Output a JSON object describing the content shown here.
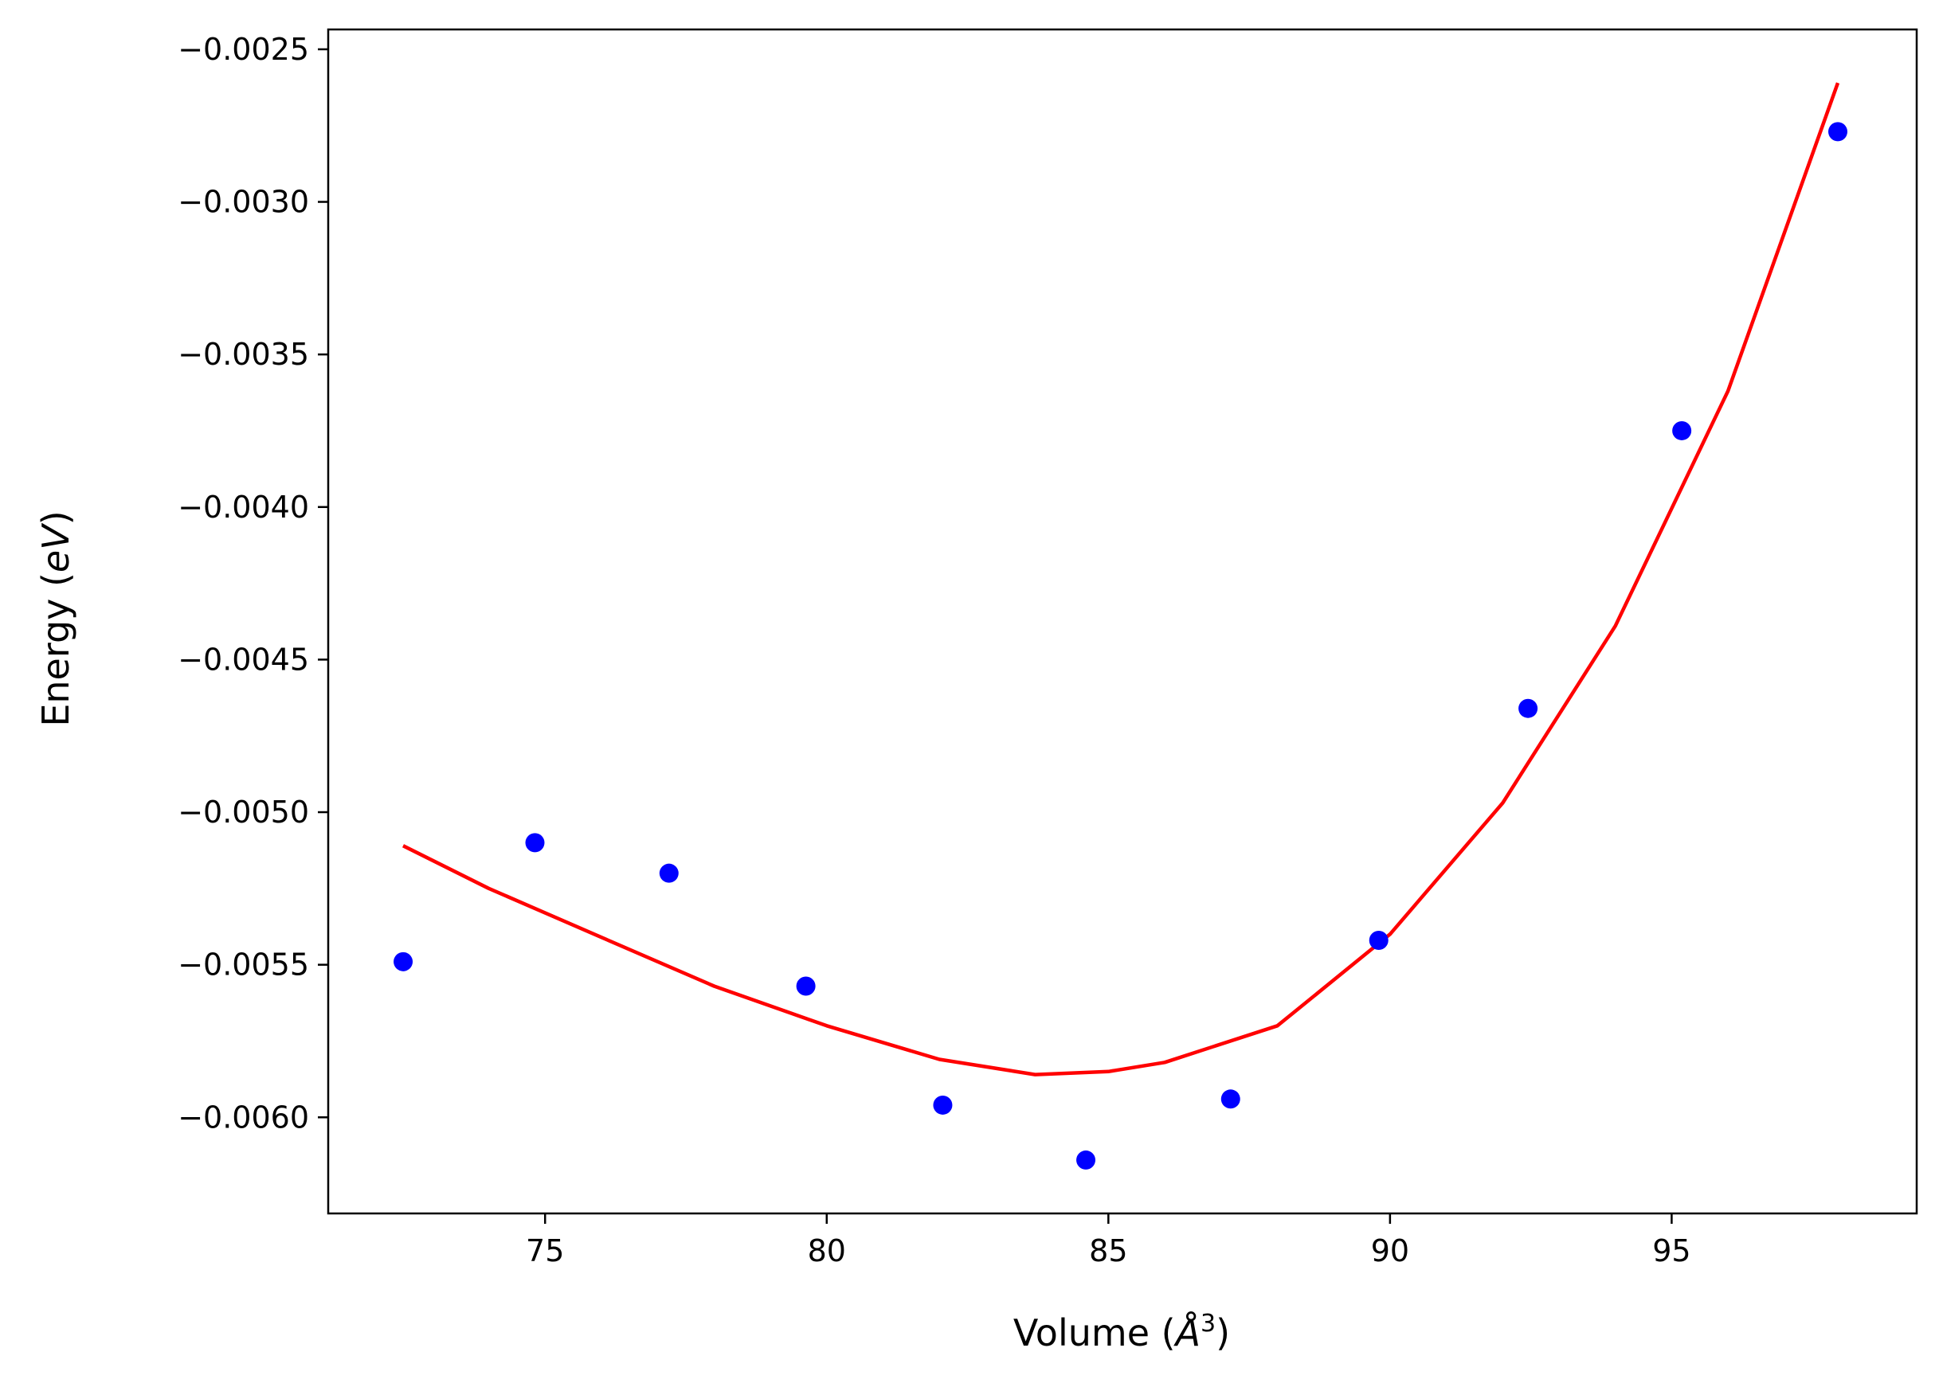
{
  "chart_data": {
    "type": "scatter",
    "title": "",
    "xlabel": "Volume (",
    "xlabel_symbol": "Å",
    "xlabel_exponent": "3",
    "xlabel_close": ")",
    "ylabel": "Energy (",
    "ylabel_unit": "eV",
    "ylabel_close": ")",
    "xlim": [
      71.15,
      99.35
    ],
    "ylim": [
      -0.006315,
      -0.002435
    ],
    "xticks": [
      {
        "value": 75,
        "label": "75"
      },
      {
        "value": 80,
        "label": "80"
      },
      {
        "value": 85,
        "label": "85"
      },
      {
        "value": 90,
        "label": "90"
      },
      {
        "value": 95,
        "label": "95"
      }
    ],
    "yticks": [
      {
        "value": -0.0025,
        "label": "−0.0025"
      },
      {
        "value": -0.003,
        "label": "−0.0030"
      },
      {
        "value": -0.0035,
        "label": "−0.0035"
      },
      {
        "value": -0.004,
        "label": "−0.0040"
      },
      {
        "value": -0.0045,
        "label": "−0.0045"
      },
      {
        "value": -0.005,
        "label": "−0.0050"
      },
      {
        "value": -0.0055,
        "label": "−0.0055"
      },
      {
        "value": -0.006,
        "label": "−0.0060"
      }
    ],
    "grid": false,
    "series": [
      {
        "name": "data",
        "kind": "scatter",
        "color": "#0000ff",
        "x": [
          72.48,
          74.82,
          77.2,
          79.63,
          82.06,
          84.6,
          87.17,
          89.8,
          92.45,
          95.18,
          97.95
        ],
        "y": [
          -0.00549,
          -0.0051,
          -0.0052,
          -0.00557,
          -0.00596,
          -0.00614,
          -0.00594,
          -0.00542,
          -0.00466,
          -0.00375,
          -0.00277
        ]
      },
      {
        "name": "fit",
        "kind": "line",
        "color": "#ff0000",
        "x": [
          72.48,
          74.0,
          76.0,
          78.0,
          80.0,
          82.0,
          83.7,
          85.0,
          86.0,
          88.0,
          90.0,
          92.0,
          94.0,
          96.0,
          97.95
        ],
        "y": [
          -0.00511,
          -0.00525,
          -0.00541,
          -0.00557,
          -0.0057,
          -0.00581,
          -0.00586,
          -0.00585,
          -0.00582,
          -0.0057,
          -0.0054,
          -0.00497,
          -0.00439,
          -0.00362,
          -0.00261
        ]
      }
    ]
  }
}
